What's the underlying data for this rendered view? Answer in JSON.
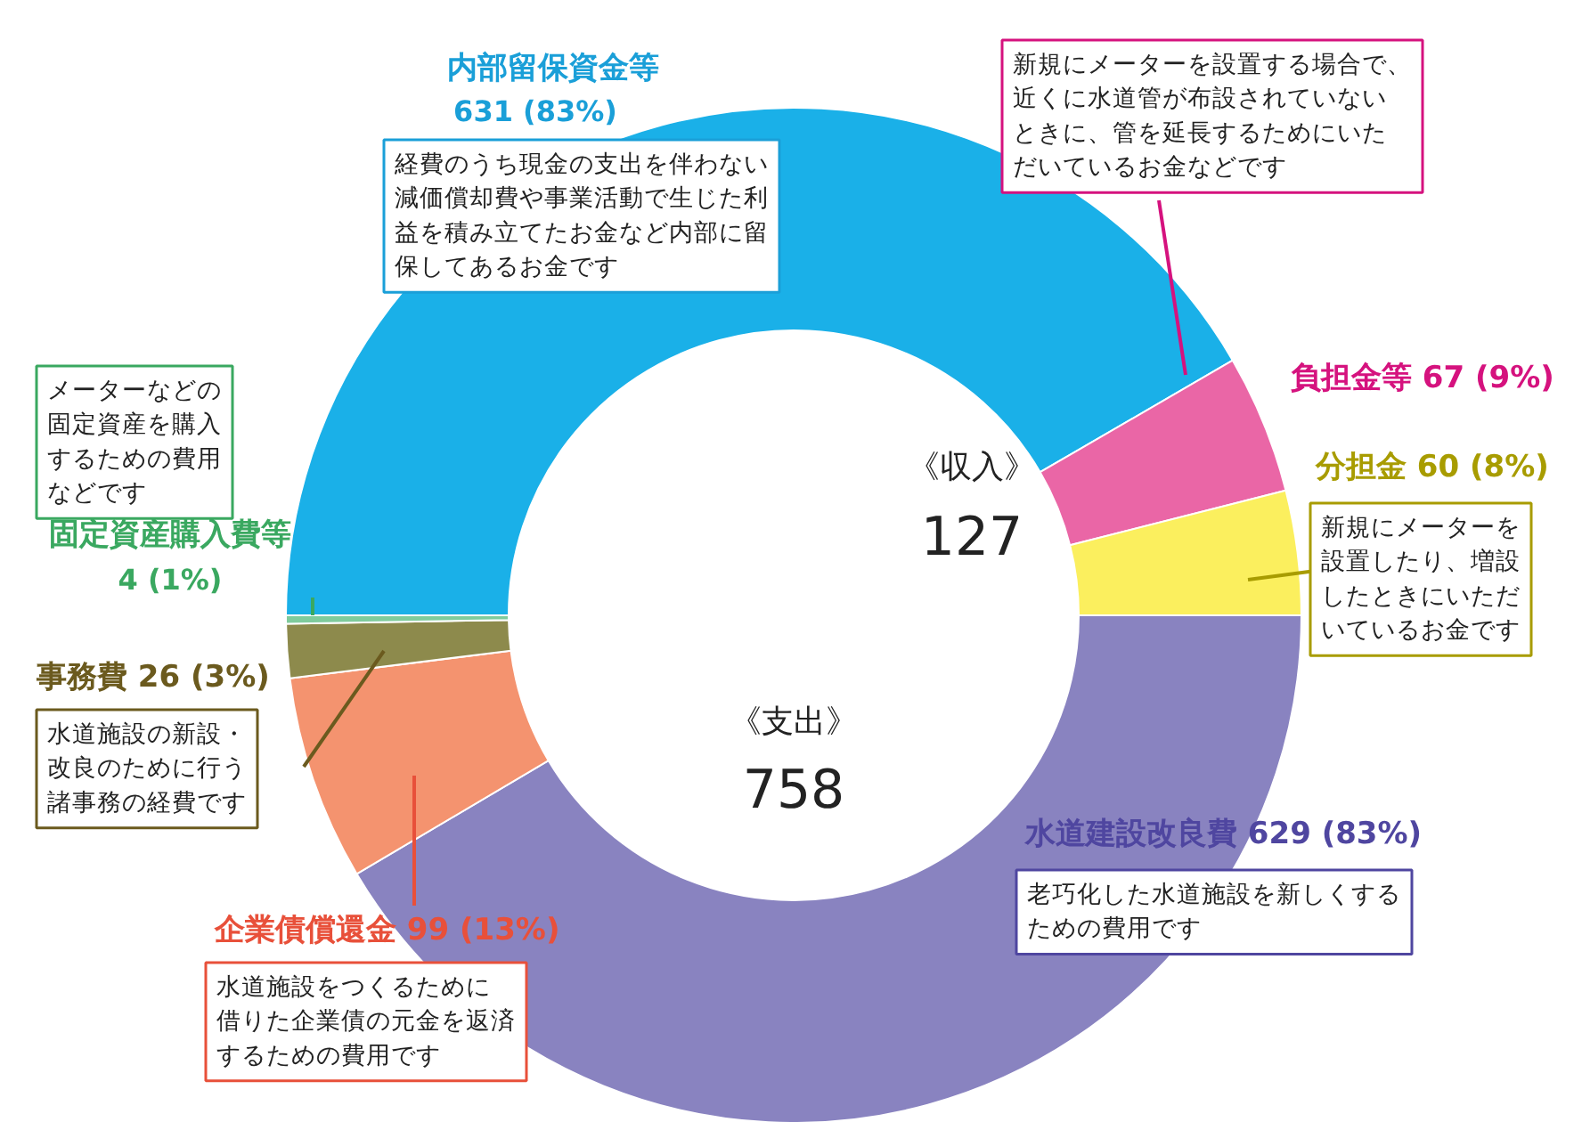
{
  "chart_data": {
    "type": "donut",
    "categories": [
      "内部留保資金等",
      "負担金等",
      "分担金",
      "水道建設改良費",
      "企業債償還金",
      "事務費",
      "固定資産購入費等"
    ],
    "values": [
      631,
      67,
      60,
      629,
      99,
      26,
      4
    ],
    "value_labels": [
      "631 (83%)",
      "67 (9%)",
      "60 (8%)",
      "629 (83%)",
      "99 (13%)",
      "26 (3%)",
      "4 (1%)"
    ],
    "colors": [
      "#1ab0e8",
      "#ea66a6",
      "#fbef5e",
      "#8983c0",
      "#f4936f",
      "#8d8a4c",
      "#7fcb9c"
    ],
    "annotations": [
      "《収入》",
      "127",
      "《支出》",
      "758",
      "経費のうち現金の支出を伴わない減価償却費や事業活動で生じた利益を積み立てたお金など内部に留保してあるお金です",
      "新規にメーターを設置する場合で、近くに水道管が布設されていないときに、管を延長するためにいただいているお金などです",
      "新規にメーターを設置したり、増設したときにいただいているお金です",
      "老巧化した水道施設を新しくするための費用です",
      "水道施設をつくるために借りた企業債の元金を返済するための費用です",
      "水道施設の新設・改良のために行う諸事務の経費です",
      "メーターなどの固定資産を購入するための費用などです"
    ]
  }
}
